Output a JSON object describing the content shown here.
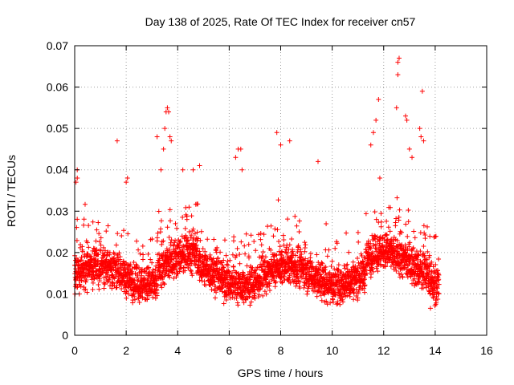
{
  "chart_data": {
    "type": "scatter",
    "title": "Day 138 of 2025, Rate Of TEC Index for receiver cn57",
    "xlabel": "GPS time / hours",
    "ylabel": "ROTI / TECUs",
    "xlim": [
      0,
      16
    ],
    "ylim": [
      0,
      0.07
    ],
    "xticks": [
      "0",
      "2",
      "4",
      "6",
      "8",
      "10",
      "12",
      "14",
      "16"
    ],
    "yticks": [
      "0",
      "0.01",
      "0.02",
      "0.03",
      "0.04",
      "0.05",
      "0.06",
      "0.07"
    ],
    "grid": true,
    "marker": "+",
    "color": "#ff0000",
    "series": [
      {
        "name": "ROTI",
        "x_range": [
          0.0,
          14.15
        ],
        "typical_range": [
          0.006,
          0.03
        ],
        "samples": [
          [
            0.05,
            0.037
          ],
          [
            0.1,
            0.038
          ],
          [
            0.1,
            0.04
          ],
          [
            1.65,
            0.047
          ],
          [
            2.0,
            0.037
          ],
          [
            2.05,
            0.038
          ],
          [
            3.2,
            0.048
          ],
          [
            3.35,
            0.04
          ],
          [
            3.45,
            0.045
          ],
          [
            3.5,
            0.05
          ],
          [
            3.55,
            0.054
          ],
          [
            3.6,
            0.055
          ],
          [
            3.65,
            0.054
          ],
          [
            3.7,
            0.048
          ],
          [
            3.75,
            0.047
          ],
          [
            4.2,
            0.04
          ],
          [
            4.6,
            0.04
          ],
          [
            4.85,
            0.041
          ],
          [
            6.25,
            0.043
          ],
          [
            6.35,
            0.045
          ],
          [
            6.45,
            0.045
          ],
          [
            6.5,
            0.04
          ],
          [
            7.85,
            0.049
          ],
          [
            8.0,
            0.046
          ],
          [
            8.35,
            0.047
          ],
          [
            9.45,
            0.042
          ],
          [
            11.5,
            0.046
          ],
          [
            11.6,
            0.049
          ],
          [
            11.7,
            0.052
          ],
          [
            11.8,
            0.057
          ],
          [
            11.85,
            0.038
          ],
          [
            12.5,
            0.055
          ],
          [
            12.55,
            0.063
          ],
          [
            12.55,
            0.066
          ],
          [
            12.6,
            0.067
          ],
          [
            12.85,
            0.053
          ],
          [
            12.9,
            0.052
          ],
          [
            13.0,
            0.045
          ],
          [
            13.1,
            0.043
          ],
          [
            13.4,
            0.05
          ],
          [
            13.45,
            0.048
          ],
          [
            13.5,
            0.059
          ],
          [
            13.55,
            0.047
          ]
        ]
      }
    ]
  }
}
